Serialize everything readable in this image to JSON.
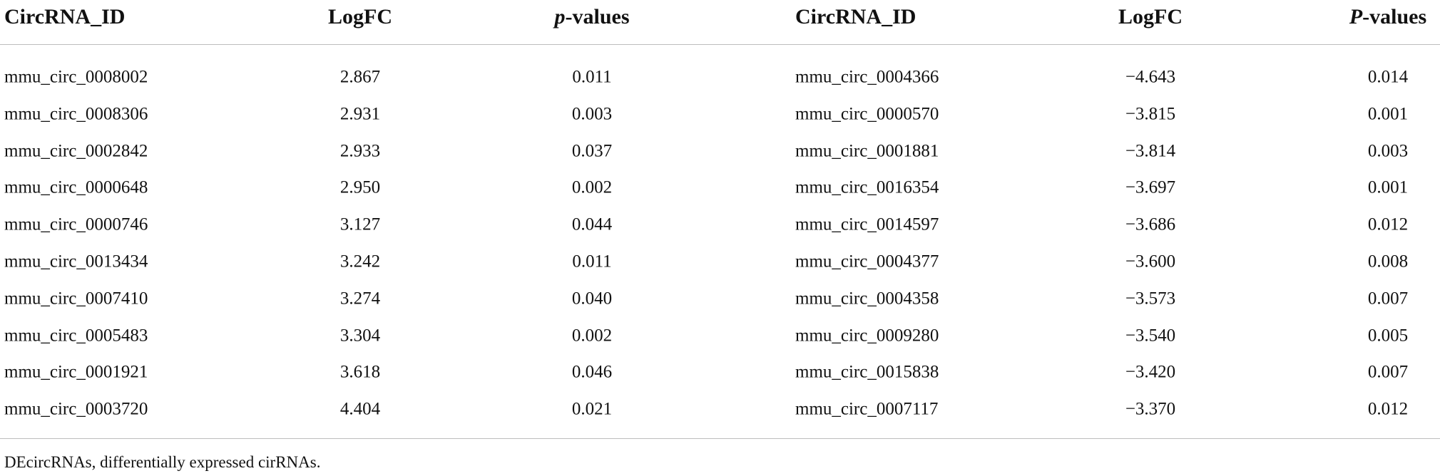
{
  "table": {
    "header": [
      "CircRNA_ID",
      "LogFC",
      "p-values",
      "CircRNA_ID",
      "LogFC",
      "P-values"
    ],
    "rows": [
      [
        "mmu_circ_0008002",
        "2.867",
        "0.011",
        "mmu_circ_0004366",
        "−4.643",
        "0.014"
      ],
      [
        "mmu_circ_0008306",
        "2.931",
        "0.003",
        "mmu_circ_0000570",
        "−3.815",
        "0.001"
      ],
      [
        "mmu_circ_0002842",
        "2.933",
        "0.037",
        "mmu_circ_0001881",
        "−3.814",
        "0.003"
      ],
      [
        "mmu_circ_0000648",
        "2.950",
        "0.002",
        "mmu_circ_0016354",
        "−3.697",
        "0.001"
      ],
      [
        "mmu_circ_0000746",
        "3.127",
        "0.044",
        "mmu_circ_0014597",
        "−3.686",
        "0.012"
      ],
      [
        "mmu_circ_0013434",
        "3.242",
        "0.011",
        "mmu_circ_0004377",
        "−3.600",
        "0.008"
      ],
      [
        "mmu_circ_0007410",
        "3.274",
        "0.040",
        "mmu_circ_0004358",
        "−3.573",
        "0.007"
      ],
      [
        "mmu_circ_0005483",
        "3.304",
        "0.002",
        "mmu_circ_0009280",
        "−3.540",
        "0.005"
      ],
      [
        "mmu_circ_0001921",
        "3.618",
        "0.046",
        "mmu_circ_0015838",
        "−3.420",
        "0.007"
      ],
      [
        "mmu_circ_0003720",
        "4.404",
        "0.021",
        "mmu_circ_0007117",
        "−3.370",
        "0.012"
      ]
    ],
    "footnote": "DEcircRNAs, differentially expressed cirRNAs."
  }
}
